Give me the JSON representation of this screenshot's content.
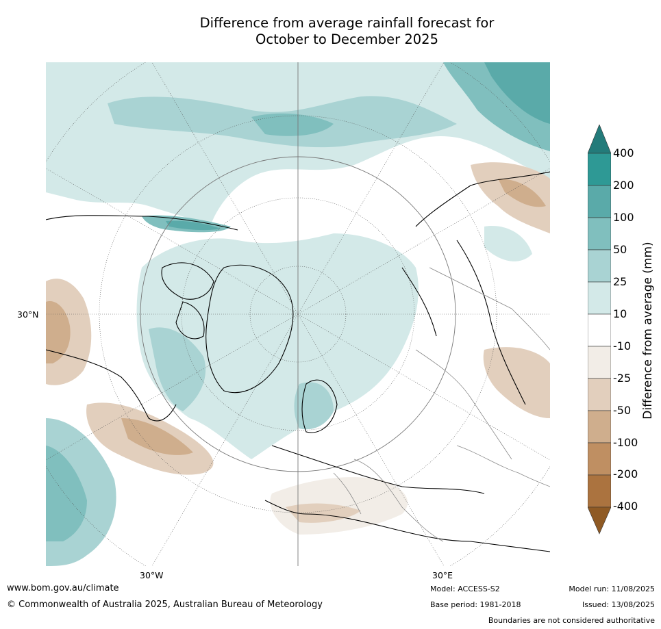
{
  "title": {
    "line1": "Difference from average rainfall forecast for",
    "line2": "October to December 2025"
  },
  "map": {
    "projection": "north-polar-stereographic",
    "labels": {
      "lat": "30°N",
      "lon_w": "30°W",
      "lon_e": "30°E"
    }
  },
  "colorbar": {
    "title": "Difference from average (mm)",
    "ticks": [
      "400",
      "200",
      "100",
      "50",
      "25",
      "10",
      "-10",
      "-25",
      "-50",
      "-100",
      "-200",
      "-400"
    ],
    "colors": {
      "above_400": "#237b7a",
      "200_400": "#2e9995",
      "100_200": "#5aaaa9",
      "50_100": "#80bfbe",
      "25_50": "#a9d3d3",
      "10_25": "#d3e9e8",
      "neutral": "#ffffff",
      "m10_m25": "#f2ede7",
      "m25_m50": "#e2cfbd",
      "m50_m100": "#cfae8d",
      "m100_m200": "#bf8f62",
      "m200_m400": "#ab733f",
      "below_m400": "#8f5a24"
    }
  },
  "footer": {
    "url": "www.bom.gov.au/climate",
    "copyright": "© Commonwealth of Australia 2025, Australian Bureau of Meteorology",
    "model": "Model: ACCESS-S2",
    "base_period": "Base period: 1981-2018",
    "model_run": "Model run: 11/08/2025",
    "issued": "Issued: 13/08/2025",
    "disclaimer": "Boundaries are not considered authoritative"
  }
}
